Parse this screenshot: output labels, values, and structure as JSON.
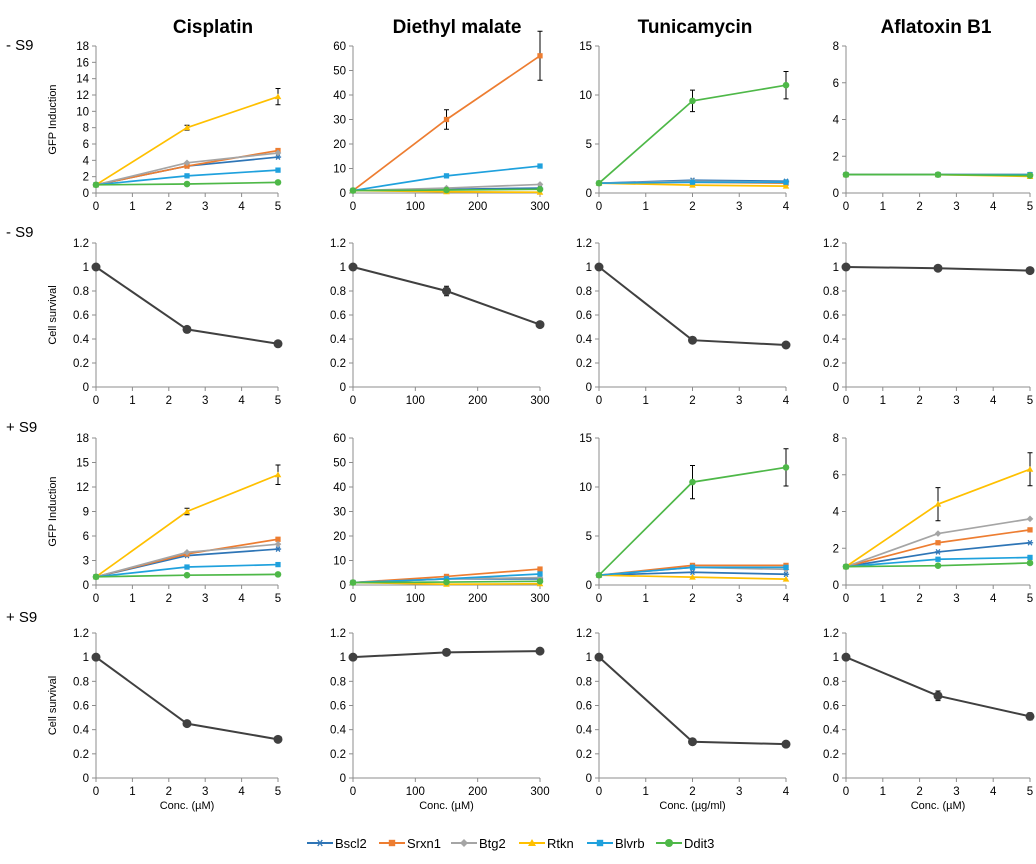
{
  "columns": [
    "Cisplatin",
    "Diethyl malate",
    "Tunicamycin",
    "Aflatoxin B1"
  ],
  "row_labels": [
    "- S9",
    "- S9",
    "+ S9",
    "+ S9"
  ],
  "series_colors": {
    "Bscl2": "#2e75b6",
    "Srxn1": "#ed7d31",
    "Btg2": "#a5a5a5",
    "Rtkn": "#ffc000",
    "Blvrb": "#1fa1dd",
    "Ddit3": "#4eb848",
    "survival": "#404040"
  },
  "legend": [
    {
      "name": "Bscl2",
      "marker": "star"
    },
    {
      "name": "Srxn1",
      "marker": "square"
    },
    {
      "name": "Btg2",
      "marker": "diamond"
    },
    {
      "name": "Rtkn",
      "marker": "triangle"
    },
    {
      "name": "Blvrb",
      "marker": "square"
    },
    {
      "name": "Ddit3",
      "marker": "circle"
    }
  ],
  "chart_data": [
    {
      "id": "gfp-noS9-cisplatin",
      "type": "line",
      "row": 0,
      "col": 0,
      "ylabel": "GFP Induction",
      "xlabel": "",
      "xlim": [
        0,
        5
      ],
      "xticks": [
        0,
        1,
        2,
        3,
        4,
        5
      ],
      "ylim": [
        0,
        18
      ],
      "yticks": [
        0,
        2,
        4,
        6,
        8,
        10,
        12,
        14,
        16,
        18
      ],
      "x": [
        0,
        2.5,
        5
      ],
      "series": [
        {
          "name": "Bscl2",
          "values": [
            1,
            3.3,
            4.4
          ]
        },
        {
          "name": "Srxn1",
          "values": [
            1,
            3.3,
            5.2
          ]
        },
        {
          "name": "Btg2",
          "values": [
            1,
            3.7,
            4.9
          ]
        },
        {
          "name": "Rtkn",
          "values": [
            1,
            8,
            11.8
          ],
          "err": [
            0,
            0.3,
            1
          ]
        },
        {
          "name": "Blvrb",
          "values": [
            1,
            2.1,
            2.8
          ]
        },
        {
          "name": "Ddit3",
          "values": [
            1,
            1.1,
            1.3
          ]
        }
      ]
    },
    {
      "id": "gfp-noS9-dem",
      "type": "line",
      "row": 0,
      "col": 1,
      "ylabel": "",
      "xlabel": "",
      "xlim": [
        0,
        300
      ],
      "xticks": [
        0,
        100,
        200,
        300
      ],
      "ylim": [
        0,
        60
      ],
      "yticks": [
        0,
        10,
        20,
        30,
        40,
        50,
        60
      ],
      "x": [
        0,
        150,
        300
      ],
      "series": [
        {
          "name": "Bscl2",
          "values": [
            1,
            1.5,
            2
          ]
        },
        {
          "name": "Srxn1",
          "values": [
            1,
            30,
            56
          ],
          "err": [
            0,
            4,
            10
          ]
        },
        {
          "name": "Btg2",
          "values": [
            1,
            2,
            3.5
          ]
        },
        {
          "name": "Rtkn",
          "values": [
            1,
            0.5,
            0.3
          ]
        },
        {
          "name": "Blvrb",
          "values": [
            1,
            7,
            11
          ]
        },
        {
          "name": "Ddit3",
          "values": [
            1,
            1.2,
            1.5
          ]
        }
      ]
    },
    {
      "id": "gfp-noS9-tunicamycin",
      "type": "line",
      "row": 0,
      "col": 2,
      "ylabel": "",
      "xlabel": "",
      "xlim": [
        0,
        4
      ],
      "xticks": [
        0,
        1,
        2,
        3,
        4
      ],
      "ylim": [
        0,
        15
      ],
      "yticks": [
        0,
        5,
        10,
        15
      ],
      "x": [
        0,
        2,
        4
      ],
      "series": [
        {
          "name": "Bscl2",
          "values": [
            1,
            1.3,
            1.2
          ]
        },
        {
          "name": "Srxn1",
          "values": [
            1,
            1.1,
            1
          ]
        },
        {
          "name": "Btg2",
          "values": [
            1,
            1.2,
            1.1
          ]
        },
        {
          "name": "Rtkn",
          "values": [
            1,
            0.8,
            0.7
          ]
        },
        {
          "name": "Blvrb",
          "values": [
            1,
            1.1,
            1.1
          ]
        },
        {
          "name": "Ddit3",
          "values": [
            1,
            9.4,
            11
          ],
          "err": [
            0,
            1.1,
            1.4
          ]
        }
      ]
    },
    {
      "id": "gfp-noS9-aflatoxin",
      "type": "line",
      "row": 0,
      "col": 3,
      "ylabel": "",
      "xlabel": "",
      "xlim": [
        0,
        5
      ],
      "xticks": [
        0,
        1,
        2,
        3,
        4,
        5
      ],
      "ylim": [
        0,
        8
      ],
      "yticks": [
        0,
        2,
        4,
        6,
        8
      ],
      "x": [
        0,
        2.5,
        5
      ],
      "series": [
        {
          "name": "Bscl2",
          "values": [
            1,
            1,
            1
          ]
        },
        {
          "name": "Srxn1",
          "values": [
            1,
            1,
            1
          ]
        },
        {
          "name": "Btg2",
          "values": [
            1,
            1,
            1
          ]
        },
        {
          "name": "Rtkn",
          "values": [
            1,
            1,
            0.9
          ]
        },
        {
          "name": "Blvrb",
          "values": [
            1,
            1,
            1
          ]
        },
        {
          "name": "Ddit3",
          "values": [
            1,
            1,
            0.95
          ]
        }
      ]
    },
    {
      "id": "survival-noS9-cisplatin",
      "type": "line",
      "row": 1,
      "col": 0,
      "ylabel": "Cell survival",
      "xlabel": "",
      "xlim": [
        0,
        5
      ],
      "xticks": [
        0,
        1,
        2,
        3,
        4,
        5
      ],
      "ylim": [
        0,
        1.2
      ],
      "yticks": [
        0,
        0.2,
        0.4,
        0.6,
        0.8,
        1,
        1.2
      ],
      "x": [
        0,
        2.5,
        5
      ],
      "series": [
        {
          "name": "survival",
          "values": [
            1,
            0.48,
            0.36
          ]
        }
      ]
    },
    {
      "id": "survival-noS9-dem",
      "type": "line",
      "row": 1,
      "col": 1,
      "ylabel": "",
      "xlabel": "",
      "xlim": [
        0,
        300
      ],
      "xticks": [
        0,
        100,
        200,
        300
      ],
      "ylim": [
        0,
        1.2
      ],
      "yticks": [
        0,
        0.2,
        0.4,
        0.6,
        0.8,
        1,
        1.2
      ],
      "x": [
        0,
        150,
        300
      ],
      "series": [
        {
          "name": "survival",
          "values": [
            1,
            0.8,
            0.52
          ],
          "err": [
            0,
            0.04,
            0
          ]
        }
      ]
    },
    {
      "id": "survival-noS9-tunicamycin",
      "type": "line",
      "row": 1,
      "col": 2,
      "ylabel": "",
      "xlabel": "",
      "xlim": [
        0,
        4
      ],
      "xticks": [
        0,
        1,
        2,
        3,
        4
      ],
      "ylim": [
        0,
        1.2
      ],
      "yticks": [
        0,
        0.2,
        0.4,
        0.6,
        0.8,
        1,
        1.2
      ],
      "x": [
        0,
        2,
        4
      ],
      "series": [
        {
          "name": "survival",
          "values": [
            1,
            0.39,
            0.35
          ]
        }
      ]
    },
    {
      "id": "survival-noS9-aflatoxin",
      "type": "line",
      "row": 1,
      "col": 3,
      "ylabel": "",
      "xlabel": "",
      "xlim": [
        0,
        5
      ],
      "xticks": [
        0,
        1,
        2,
        3,
        4,
        5
      ],
      "ylim": [
        0,
        1.2
      ],
      "yticks": [
        0,
        0.2,
        0.4,
        0.6,
        0.8,
        1,
        1.2
      ],
      "x": [
        0,
        2.5,
        5
      ],
      "series": [
        {
          "name": "survival",
          "values": [
            1,
            0.99,
            0.97
          ]
        }
      ]
    },
    {
      "id": "gfp-S9-cisplatin",
      "type": "line",
      "row": 2,
      "col": 0,
      "ylabel": "GFP Induction",
      "xlabel": "",
      "xlim": [
        0,
        5
      ],
      "xticks": [
        0,
        1,
        2,
        3,
        4,
        5
      ],
      "ylim": [
        0,
        18
      ],
      "yticks": [
        0,
        3,
        6,
        9,
        12,
        15,
        18
      ],
      "x": [
        0,
        2.5,
        5
      ],
      "series": [
        {
          "name": "Bscl2",
          "values": [
            1,
            3.6,
            4.4
          ]
        },
        {
          "name": "Srxn1",
          "values": [
            1,
            3.8,
            5.6
          ]
        },
        {
          "name": "Btg2",
          "values": [
            1,
            4,
            5
          ]
        },
        {
          "name": "Rtkn",
          "values": [
            1,
            9,
            13.5
          ],
          "err": [
            0,
            0.4,
            1.2
          ]
        },
        {
          "name": "Blvrb",
          "values": [
            1,
            2.2,
            2.5
          ]
        },
        {
          "name": "Ddit3",
          "values": [
            1,
            1.2,
            1.3
          ]
        }
      ]
    },
    {
      "id": "gfp-S9-dem",
      "type": "line",
      "row": 2,
      "col": 1,
      "ylabel": "",
      "xlabel": "",
      "xlim": [
        0,
        300
      ],
      "xticks": [
        0,
        100,
        200,
        300
      ],
      "ylim": [
        0,
        60
      ],
      "yticks": [
        0,
        10,
        20,
        30,
        40,
        50,
        60
      ],
      "x": [
        0,
        150,
        300
      ],
      "series": [
        {
          "name": "Bscl2",
          "values": [
            1,
            2.5,
            2.5
          ]
        },
        {
          "name": "Srxn1",
          "values": [
            1,
            3.5,
            6.5
          ]
        },
        {
          "name": "Btg2",
          "values": [
            1,
            2.5,
            3
          ]
        },
        {
          "name": "Rtkn",
          "values": [
            1,
            0.3,
            0.5
          ]
        },
        {
          "name": "Blvrb",
          "values": [
            1,
            2.5,
            4.5
          ]
        },
        {
          "name": "Ddit3",
          "values": [
            1,
            1.2,
            1.5
          ]
        }
      ]
    },
    {
      "id": "gfp-S9-tunicamycin",
      "type": "line",
      "row": 2,
      "col": 2,
      "ylabel": "",
      "xlabel": "",
      "xlim": [
        0,
        4
      ],
      "xticks": [
        0,
        1,
        2,
        3,
        4
      ],
      "ylim": [
        0,
        15
      ],
      "yticks": [
        0,
        5,
        10,
        15
      ],
      "x": [
        0,
        2,
        4
      ],
      "series": [
        {
          "name": "Bscl2",
          "values": [
            1,
            1.3,
            1.1
          ]
        },
        {
          "name": "Srxn1",
          "values": [
            1,
            2,
            2
          ]
        },
        {
          "name": "Btg2",
          "values": [
            1,
            1.8,
            1.6
          ]
        },
        {
          "name": "Rtkn",
          "values": [
            1,
            0.8,
            0.6
          ]
        },
        {
          "name": "Blvrb",
          "values": [
            1,
            1.8,
            1.8
          ]
        },
        {
          "name": "Ddit3",
          "values": [
            1,
            10.5,
            12
          ],
          "err": [
            0,
            1.7,
            1.9
          ]
        }
      ]
    },
    {
      "id": "gfp-S9-aflatoxin",
      "type": "line",
      "row": 2,
      "col": 3,
      "ylabel": "",
      "xlabel": "",
      "xlim": [
        0,
        5
      ],
      "xticks": [
        0,
        1,
        2,
        3,
        4,
        5
      ],
      "ylim": [
        0,
        8
      ],
      "yticks": [
        0,
        2,
        4,
        6,
        8
      ],
      "x": [
        0,
        2.5,
        5
      ],
      "series": [
        {
          "name": "Bscl2",
          "values": [
            1,
            1.8,
            2.3
          ]
        },
        {
          "name": "Srxn1",
          "values": [
            1,
            2.3,
            3
          ]
        },
        {
          "name": "Btg2",
          "values": [
            1,
            2.8,
            3.6
          ]
        },
        {
          "name": "Rtkn",
          "values": [
            1,
            4.4,
            6.3
          ],
          "err": [
            0,
            0.9,
            0.9
          ]
        },
        {
          "name": "Blvrb",
          "values": [
            1,
            1.4,
            1.5
          ]
        },
        {
          "name": "Ddit3",
          "values": [
            1,
            1.05,
            1.2
          ]
        }
      ]
    },
    {
      "id": "survival-S9-cisplatin",
      "type": "line",
      "row": 3,
      "col": 0,
      "ylabel": "Cell survival",
      "xlabel": "Conc. (µM)",
      "xlim": [
        0,
        5
      ],
      "xticks": [
        0,
        1,
        2,
        3,
        4,
        5
      ],
      "ylim": [
        0,
        1.2
      ],
      "yticks": [
        0,
        0.2,
        0.4,
        0.6,
        0.8,
        1,
        1.2
      ],
      "x": [
        0,
        2.5,
        5
      ],
      "series": [
        {
          "name": "survival",
          "values": [
            1,
            0.45,
            0.32
          ]
        }
      ]
    },
    {
      "id": "survival-S9-dem",
      "type": "line",
      "row": 3,
      "col": 1,
      "ylabel": "",
      "xlabel": "Conc. (µM)",
      "xlim": [
        0,
        300
      ],
      "xticks": [
        0,
        100,
        200,
        300
      ],
      "ylim": [
        0,
        1.2
      ],
      "yticks": [
        0,
        0.2,
        0.4,
        0.6,
        0.8,
        1,
        1.2
      ],
      "x": [
        0,
        150,
        300
      ],
      "series": [
        {
          "name": "survival",
          "values": [
            1,
            1.04,
            1.05
          ]
        }
      ]
    },
    {
      "id": "survival-S9-tunicamycin",
      "type": "line",
      "row": 3,
      "col": 2,
      "ylabel": "",
      "xlabel": "Conc. (µg/ml)",
      "xlim": [
        0,
        4
      ],
      "xticks": [
        0,
        1,
        2,
        3,
        4
      ],
      "ylim": [
        0,
        1.2
      ],
      "yticks": [
        0,
        0.2,
        0.4,
        0.6,
        0.8,
        1,
        1.2
      ],
      "x": [
        0,
        2,
        4
      ],
      "series": [
        {
          "name": "survival",
          "values": [
            1,
            0.3,
            0.28
          ]
        }
      ]
    },
    {
      "id": "survival-S9-aflatoxin",
      "type": "line",
      "row": 3,
      "col": 3,
      "ylabel": "",
      "xlabel": "Conc. (µM)",
      "xlim": [
        0,
        5
      ],
      "xticks": [
        0,
        1,
        2,
        3,
        4,
        5
      ],
      "ylim": [
        0,
        1.2
      ],
      "yticks": [
        0,
        0.2,
        0.4,
        0.6,
        0.8,
        1,
        1.2
      ],
      "x": [
        0,
        2.5,
        5
      ],
      "series": [
        {
          "name": "survival",
          "values": [
            1,
            0.68,
            0.51
          ],
          "err": [
            0,
            0.04,
            0.03
          ]
        }
      ]
    }
  ]
}
